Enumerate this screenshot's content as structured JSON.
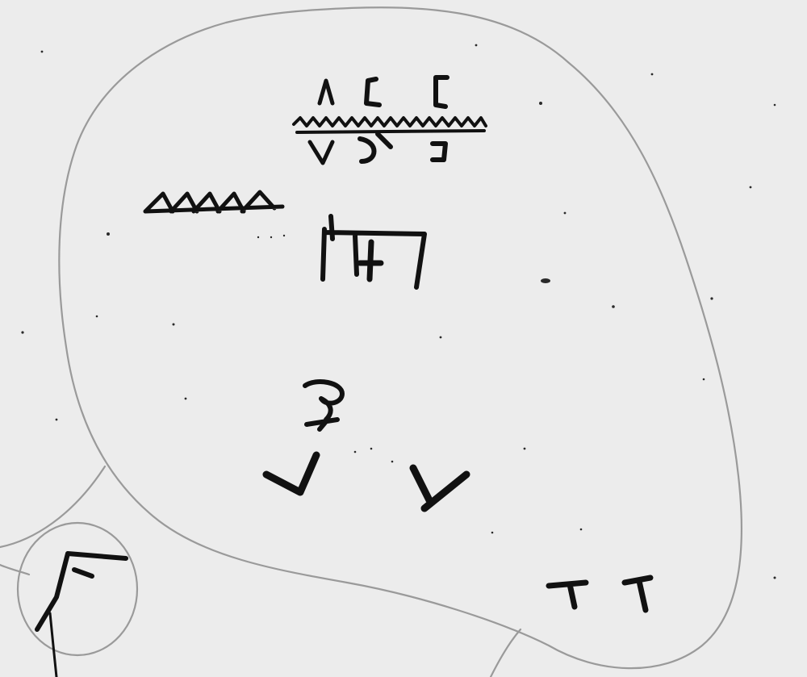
{
  "drawing": {
    "paper_color": "#ececec",
    "ink_color": "#111111",
    "pencil_color": "#9a9a9a",
    "speck_color": "#2a2a2a"
  },
  "symbols": {
    "caret_glyphs": [
      "caret-v-symbol",
      "hook-symbol",
      "bracket-c-symbol"
    ],
    "wave_line": "zigzag-line-symbol",
    "triangle_row": "triangle-row-symbol",
    "goalpost_frame": "goalpost-symbol",
    "swirl_figure": "swirl-figure-symbol",
    "y_marks": [
      "left-stroke-symbol",
      "y-stroke-symbol"
    ],
    "t_marks": [
      "t-mark-symbol",
      "t-mark-symbol"
    ],
    "circled_glyph": "f-glyph-symbol"
  }
}
